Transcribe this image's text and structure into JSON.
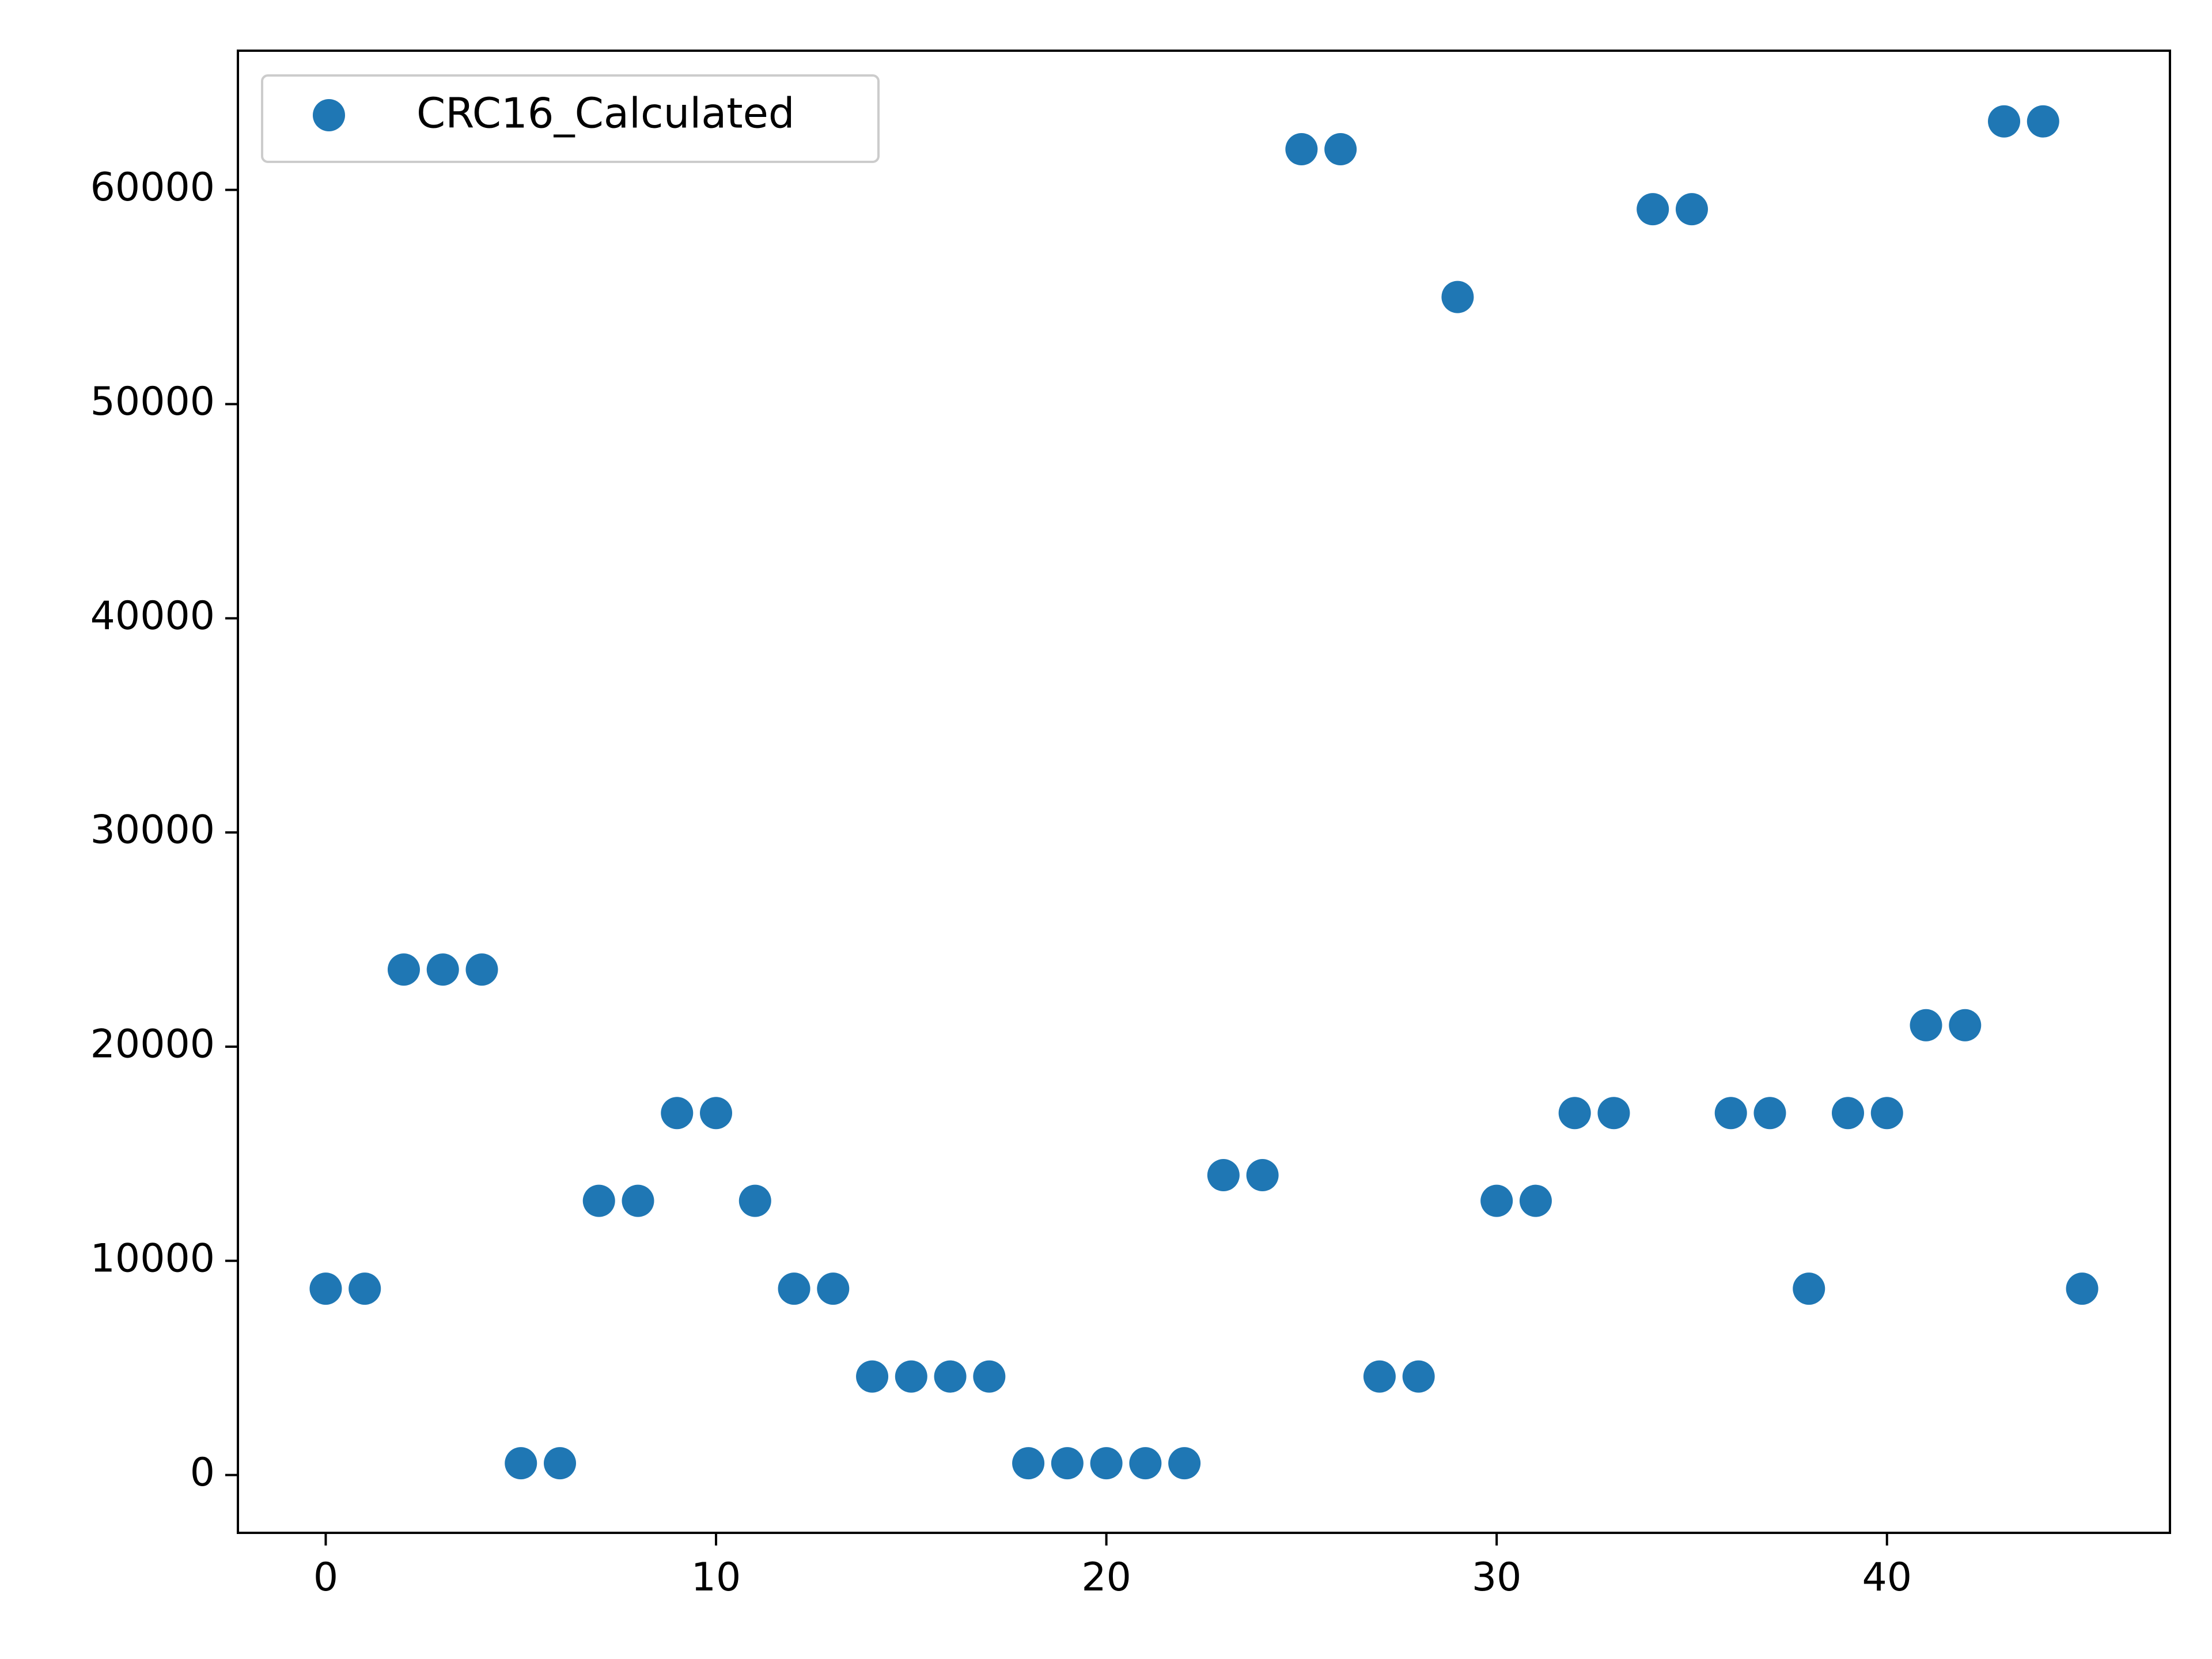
{
  "chart_data": {
    "type": "scatter",
    "title": "",
    "xlabel": "",
    "ylabel": "",
    "xlim": [
      -2.25,
      47.25
    ],
    "ylim": [
      -2700,
      66500
    ],
    "x_ticks": [
      0,
      10,
      20,
      30,
      40
    ],
    "y_ticks": [
      0,
      10000,
      20000,
      30000,
      40000,
      50000,
      60000
    ],
    "x_tick_labels": [
      "0",
      "10",
      "20",
      "30",
      "40"
    ],
    "y_tick_labels": [
      "0",
      "10000",
      "20000",
      "30000",
      "40000",
      "50000",
      "60000"
    ],
    "grid": false,
    "legend": {
      "position": "top-left"
    },
    "series": [
      {
        "name": "CRC16_Calculated",
        "color": "#1f77b4",
        "marker": "circle",
        "x": [
          0,
          1,
          2,
          3,
          4,
          5,
          6,
          7,
          8,
          9,
          10,
          11,
          12,
          13,
          14,
          15,
          16,
          17,
          18,
          19,
          20,
          21,
          22,
          23,
          24,
          25,
          26,
          27,
          28,
          29,
          30,
          31,
          32,
          33,
          34,
          35,
          36,
          37,
          38,
          39,
          40,
          41,
          42,
          43,
          44,
          45
        ],
        "y": [
          8700,
          8700,
          23600,
          23600,
          23600,
          550,
          550,
          12800,
          12800,
          16900,
          16900,
          12800,
          8700,
          8700,
          4600,
          4600,
          4600,
          4600,
          550,
          550,
          550,
          550,
          550,
          14000,
          14000,
          61900,
          61900,
          4600,
          4600,
          55000,
          12800,
          12800,
          16900,
          16900,
          59100,
          59100,
          16900,
          16900,
          8700,
          16900,
          16900,
          21000,
          21000,
          63200,
          63200,
          8700
        ]
      }
    ]
  }
}
